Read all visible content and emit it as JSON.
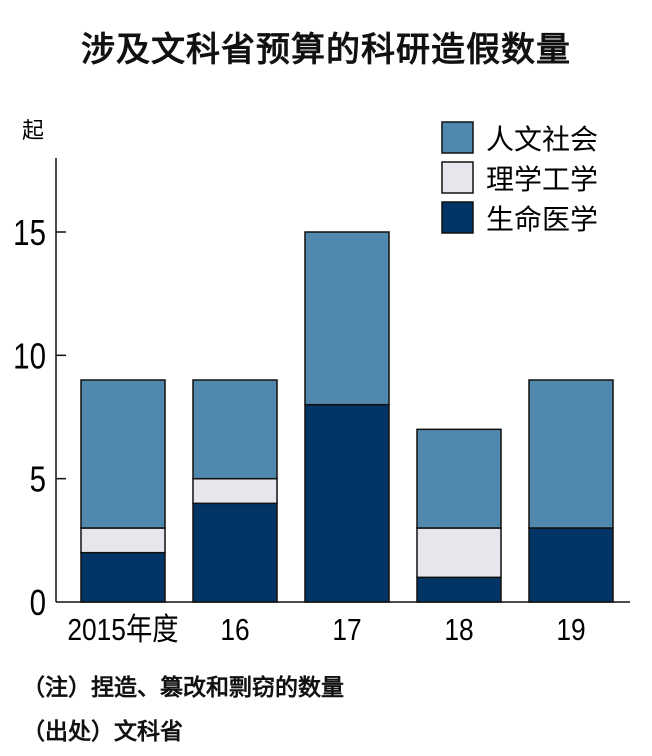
{
  "title": "涉及文科省预算的科研造假数量",
  "chart_data": {
    "type": "bar",
    "stacked": true,
    "unit_label": "起",
    "categories": [
      "2015年度",
      "16",
      "17",
      "18",
      "19"
    ],
    "series": [
      {
        "name": "生命医学",
        "color": "#023565",
        "values": [
          2,
          4,
          8,
          1,
          3
        ]
      },
      {
        "name": "理学工学",
        "color": "#e6e7ec",
        "values": [
          1,
          1,
          0,
          2,
          0
        ]
      },
      {
        "name": "人文社会",
        "color": "#5188ae",
        "values": [
          6,
          4,
          7,
          4,
          6
        ]
      }
    ],
    "legend_order": [
      "人文社会",
      "理学工学",
      "生命医学"
    ],
    "legend_position": "top-right",
    "yticks": [
      0,
      5,
      10,
      15
    ],
    "ylim": [
      0,
      18
    ],
    "grid": false
  },
  "notes": {
    "note": "（注）捏造、篡改和剽窃的数量",
    "source": "（出处）文科省"
  }
}
